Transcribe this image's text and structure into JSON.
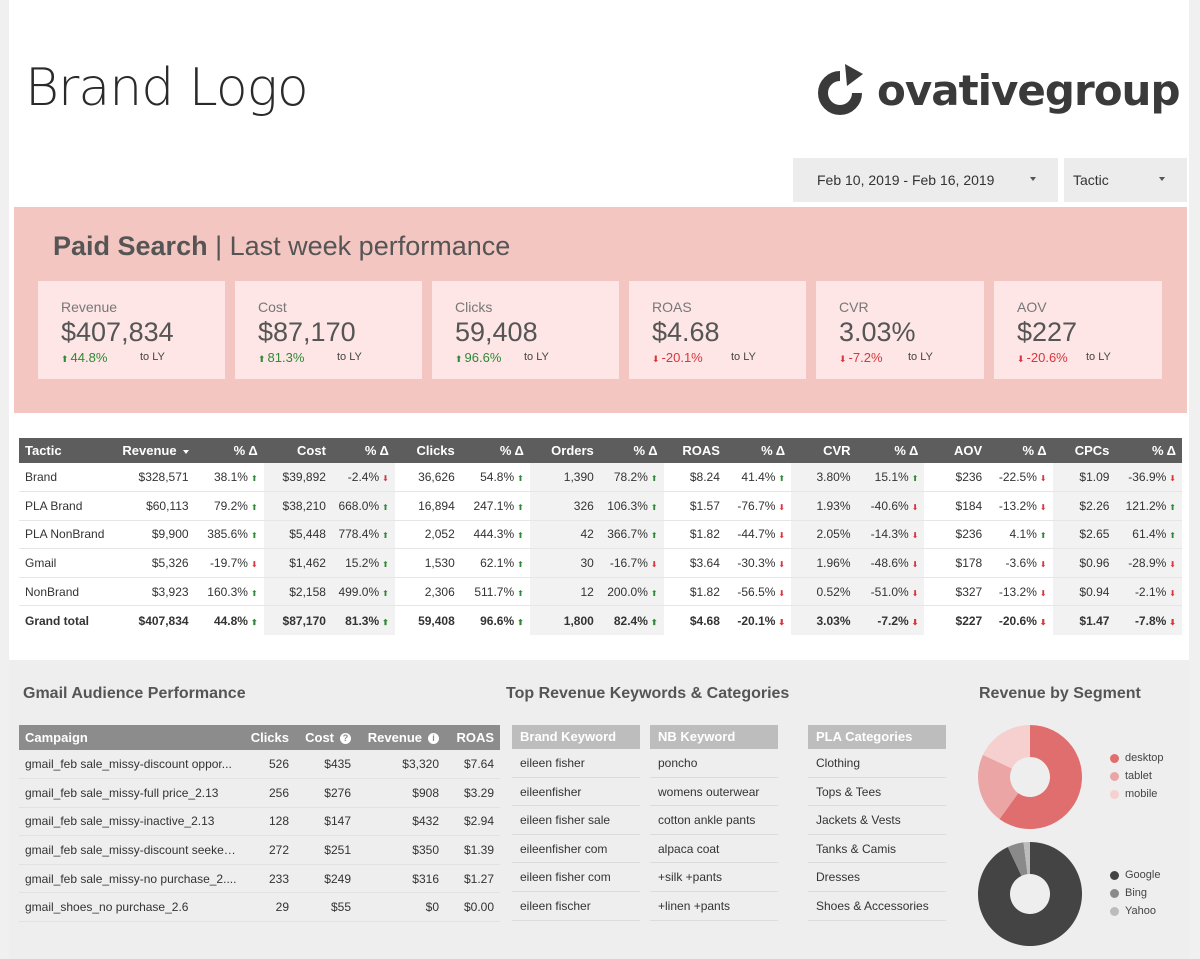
{
  "header": {
    "brand_logo": "Brand Logo",
    "partner_logo": "ovativegroup",
    "date_filter": "Feb 10, 2019 - Feb 16, 2019",
    "tactic_filter": "Tactic"
  },
  "summary": {
    "title_bold": "Paid Search",
    "title_rest": "Last week performance",
    "comparison_label": "to LY",
    "kpis": [
      {
        "label": "Revenue",
        "value": "$407,834",
        "delta": "44.8%",
        "direction": "up"
      },
      {
        "label": "Cost",
        "value": "$87,170",
        "delta": "81.3%",
        "direction": "up"
      },
      {
        "label": "Clicks",
        "value": "59,408",
        "delta": "96.6%",
        "direction": "up"
      },
      {
        "label": "ROAS",
        "value": "$4.68",
        "delta": "-20.1%",
        "direction": "down"
      },
      {
        "label": "CVR",
        "value": "3.03%",
        "delta": "-7.2%",
        "direction": "down"
      },
      {
        "label": "AOV",
        "value": "$227",
        "delta": "-20.6%",
        "direction": "down"
      }
    ]
  },
  "tactic_table": {
    "headers": [
      "Tactic",
      "Revenue",
      "% Δ",
      "Cost",
      "% Δ",
      "Clicks",
      "% Δ",
      "Orders",
      "% Δ",
      "ROAS",
      "% Δ",
      "CVR",
      "% Δ",
      "AOV",
      "% Δ",
      "CPCs",
      "% Δ"
    ],
    "rows": [
      [
        "Brand",
        "$328,571",
        "38.1%",
        "$39,892",
        "-2.4%",
        "36,626",
        "54.8%",
        "1,390",
        "78.2%",
        "$8.24",
        "41.4%",
        "3.80%",
        "15.1%",
        "$236",
        "-22.5%",
        "$1.09",
        "-36.9%"
      ],
      [
        "PLA Brand",
        "$60,113",
        "79.2%",
        "$38,210",
        "668.0%",
        "16,894",
        "247.1%",
        "326",
        "106.3%",
        "$1.57",
        "-76.7%",
        "1.93%",
        "-40.6%",
        "$184",
        "-13.2%",
        "$2.26",
        "121.2%"
      ],
      [
        "PLA NonBrand",
        "$9,900",
        "385.6%",
        "$5,448",
        "778.4%",
        "2,052",
        "444.3%",
        "42",
        "366.7%",
        "$1.82",
        "-44.7%",
        "2.05%",
        "-14.3%",
        "$236",
        "4.1%",
        "$2.65",
        "61.4%"
      ],
      [
        "Gmail",
        "$5,326",
        "-19.7%",
        "$1,462",
        "15.2%",
        "1,530",
        "62.1%",
        "30",
        "-16.7%",
        "$3.64",
        "-30.3%",
        "1.96%",
        "-48.6%",
        "$178",
        "-3.6%",
        "$0.96",
        "-28.9%"
      ],
      [
        "NonBrand",
        "$3,923",
        "160.3%",
        "$2,158",
        "499.0%",
        "2,306",
        "511.7%",
        "12",
        "200.0%",
        "$1.82",
        "-56.5%",
        "0.52%",
        "-51.0%",
        "$327",
        "-13.2%",
        "$0.94",
        "-2.1%"
      ],
      [
        "Grand total",
        "$407,834",
        "44.8%",
        "$87,170",
        "81.3%",
        "59,408",
        "96.6%",
        "1,800",
        "82.4%",
        "$4.68",
        "-20.1%",
        "3.03%",
        "-7.2%",
        "$227",
        "-20.6%",
        "$1.47",
        "-7.8%"
      ]
    ]
  },
  "gmail": {
    "title": "Gmail Audience Performance",
    "headers": [
      "Campaign",
      "Clicks",
      "Cost",
      "Revenue",
      "ROAS"
    ],
    "rows": [
      [
        "gmail_feb sale_missy-discount oppor...",
        "526",
        "$435",
        "$3,320",
        "$7.64"
      ],
      [
        "gmail_feb sale_missy-full price_2.13",
        "256",
        "$276",
        "$908",
        "$3.29"
      ],
      [
        "gmail_feb sale_missy-inactive_2.13",
        "128",
        "$147",
        "$432",
        "$2.94"
      ],
      [
        "gmail_feb sale_missy-discount seeker...",
        "272",
        "$251",
        "$350",
        "$1.39"
      ],
      [
        "gmail_feb sale_missy-no purchase_2....",
        "233",
        "$249",
        "$316",
        "$1.27"
      ],
      [
        "gmail_shoes_no purchase_2.6",
        "29",
        "$55",
        "$0",
        "$0.00"
      ]
    ]
  },
  "keywords": {
    "title": "Top Revenue Keywords & Categories",
    "brand": {
      "header": "Brand Keyword",
      "items": [
        "eileen fisher",
        "eileenfisher",
        "eileen fisher sale",
        "eileenfisher com",
        "eileen fisher com",
        "eileen fischer"
      ]
    },
    "nb": {
      "header": "NB Keyword",
      "items": [
        "poncho",
        "womens outerwear",
        "cotton ankle pants",
        "alpaca coat",
        "+silk +pants",
        "+linen +pants"
      ]
    },
    "pla": {
      "header": "PLA Categories",
      "items": [
        "Clothing",
        "Tops & Tees",
        "Jackets & Vests",
        "Tanks & Camis",
        "Dresses",
        "Shoes & Accessories"
      ]
    }
  },
  "segments": {
    "title": "Revenue by Segment",
    "chart_data": [
      {
        "type": "pie",
        "series": [
          {
            "name": "desktop",
            "value": 0.6,
            "color": "#e06e6e"
          },
          {
            "name": "tablet",
            "value": 0.22,
            "color": "#eba5a5"
          },
          {
            "name": "mobile",
            "value": 0.18,
            "color": "#f6cfcf"
          }
        ]
      },
      {
        "type": "pie",
        "series": [
          {
            "name": "Google",
            "value": 0.93,
            "color": "#444444"
          },
          {
            "name": "Bing",
            "value": 0.05,
            "color": "#8a8a8a"
          },
          {
            "name": "Yahoo",
            "value": 0.02,
            "color": "#bcbcbc"
          }
        ]
      }
    ]
  }
}
